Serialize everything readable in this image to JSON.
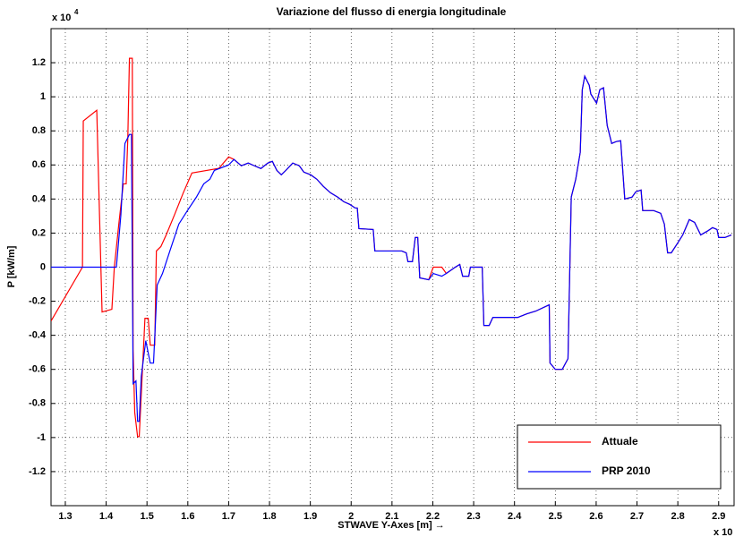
{
  "chart_data": {
    "type": "line",
    "title": "Variazione del flusso di energia longitudinale",
    "xlabel": "STWAVE Y-Axes [m] →",
    "ylabel": "P [kW/m]",
    "y_multiplier": "x 10",
    "y_multiplier_exponent": "4",
    "x_multiplier": "x 10",
    "xlim": [
      1.265,
      2.94
    ],
    "ylim": [
      -1.4,
      1.4
    ],
    "xticks": [
      1.3,
      1.4,
      1.5,
      1.6,
      1.7,
      1.8,
      1.9,
      2,
      2.1,
      2.2,
      2.3,
      2.4,
      2.5,
      2.6,
      2.7,
      2.8,
      2.9
    ],
    "yticks": [
      -1.2,
      -1,
      -0.8,
      -0.6,
      -0.4,
      -0.2,
      0,
      0.2,
      0.4,
      0.6,
      0.8,
      1,
      1.2
    ],
    "grid": true,
    "legend": "lower right",
    "series": [
      {
        "name": "Attuale",
        "color": "#ff0000",
        "x": [
          1.265,
          1.342,
          1.344,
          1.377,
          1.39,
          1.414,
          1.42,
          1.431,
          1.442,
          1.449,
          1.453,
          1.457,
          1.464,
          1.466,
          1.47,
          1.477,
          1.481,
          1.486,
          1.495,
          1.503,
          1.508,
          1.519,
          1.523,
          1.534,
          1.547,
          1.567,
          1.589,
          1.61,
          1.676,
          1.7,
          1.713,
          1.731,
          1.748,
          1.763,
          1.779,
          1.796,
          1.807,
          1.818,
          1.829,
          1.84,
          1.857,
          1.873,
          1.884,
          1.901,
          1.916,
          1.932,
          1.949,
          1.967,
          1.982,
          1.997,
          2.01,
          2.015,
          2.019,
          2.054,
          2.058,
          2.124,
          2.135,
          2.139,
          2.15,
          2.157,
          2.163,
          2.168,
          2.19,
          2.201,
          2.222,
          2.233,
          2.255,
          2.266,
          2.273,
          2.288,
          2.292,
          2.321,
          2.325,
          2.338,
          2.347,
          2.408,
          2.43,
          2.452,
          2.485,
          2.487,
          2.5,
          2.517,
          2.531,
          2.539,
          2.55,
          2.561,
          2.566,
          2.572,
          2.583,
          2.587,
          2.601,
          2.609,
          2.618,
          2.627,
          2.638,
          2.649,
          2.66,
          2.67,
          2.688,
          2.697,
          2.71,
          2.714,
          2.741,
          2.758,
          2.767,
          2.775,
          2.784,
          2.801,
          2.812,
          2.828,
          2.841,
          2.856,
          2.872,
          2.885,
          2.896,
          2.9,
          2.915,
          2.931
        ],
        "values": [
          -0.316,
          0,
          0.858,
          0.921,
          -0.263,
          -0.247,
          0,
          0.253,
          0.489,
          0.489,
          0.753,
          1.226,
          1.226,
          -0.484,
          -0.853,
          -0.995,
          -0.995,
          -0.747,
          -0.3,
          -0.3,
          -0.458,
          -0.458,
          0.095,
          0.121,
          0.189,
          0.305,
          0.437,
          0.553,
          0.58,
          0.647,
          0.632,
          0.595,
          0.611,
          0.595,
          0.579,
          0.611,
          0.621,
          0.568,
          0.542,
          0.568,
          0.611,
          0.595,
          0.558,
          0.542,
          0.516,
          0.474,
          0.437,
          0.411,
          0.384,
          0.368,
          0.347,
          0.347,
          0.226,
          0.221,
          0.095,
          0.095,
          0.084,
          0.032,
          0.032,
          0.174,
          0.174,
          -0.063,
          -0.074,
          0,
          0,
          -0.037,
          0,
          0.016,
          -0.053,
          -0.053,
          0,
          0,
          -0.342,
          -0.342,
          -0.295,
          -0.295,
          -0.274,
          -0.258,
          -0.221,
          -0.563,
          -0.6,
          -0.6,
          -0.537,
          0.411,
          0.516,
          0.674,
          1.042,
          1.121,
          1.068,
          1.016,
          0.963,
          1.042,
          1.053,
          0.832,
          0.726,
          0.737,
          0.742,
          0.4,
          0.411,
          0.442,
          0.453,
          0.332,
          0.332,
          0.316,
          0.253,
          0.084,
          0.084,
          0.147,
          0.189,
          0.279,
          0.263,
          0.189,
          0.211,
          0.232,
          0.221,
          0.174,
          0.174,
          0.189
        ]
      },
      {
        "name": "PRP 2010",
        "color": "#0000ff",
        "x": [
          1.265,
          1.425,
          1.436,
          1.446,
          1.457,
          1.462,
          1.466,
          1.473,
          1.477,
          1.481,
          1.486,
          1.497,
          1.508,
          1.516,
          1.525,
          1.538,
          1.556,
          1.578,
          1.599,
          1.621,
          1.639,
          1.654,
          1.665,
          1.7,
          1.713,
          1.731,
          1.748,
          1.763,
          1.779,
          1.796,
          1.807,
          1.818,
          1.829,
          1.84,
          1.857,
          1.873,
          1.884,
          1.901,
          1.916,
          1.932,
          1.949,
          1.967,
          1.982,
          1.997,
          2.01,
          2.015,
          2.019,
          2.054,
          2.058,
          2.124,
          2.135,
          2.139,
          2.15,
          2.157,
          2.163,
          2.168,
          2.19,
          2.201,
          2.222,
          2.233,
          2.255,
          2.266,
          2.273,
          2.288,
          2.292,
          2.321,
          2.325,
          2.338,
          2.347,
          2.408,
          2.43,
          2.452,
          2.485,
          2.487,
          2.5,
          2.517,
          2.531,
          2.539,
          2.55,
          2.561,
          2.566,
          2.572,
          2.583,
          2.587,
          2.601,
          2.609,
          2.618,
          2.627,
          2.638,
          2.649,
          2.66,
          2.67,
          2.688,
          2.697,
          2.71,
          2.714,
          2.741,
          2.758,
          2.767,
          2.775,
          2.784,
          2.801,
          2.812,
          2.828,
          2.841,
          2.856,
          2.872,
          2.885,
          2.896,
          2.9,
          2.915,
          2.931
        ],
        "values": [
          0,
          0,
          0.305,
          0.726,
          0.779,
          0.779,
          -0.684,
          -0.668,
          -0.905,
          -0.905,
          -0.642,
          -0.432,
          -0.563,
          -0.563,
          -0.105,
          -0.037,
          0.095,
          0.253,
          0.332,
          0.411,
          0.489,
          0.516,
          0.568,
          0.6,
          0.632,
          0.595,
          0.611,
          0.595,
          0.579,
          0.611,
          0.621,
          0.568,
          0.542,
          0.568,
          0.611,
          0.595,
          0.558,
          0.542,
          0.516,
          0.474,
          0.437,
          0.411,
          0.384,
          0.368,
          0.347,
          0.347,
          0.226,
          0.221,
          0.095,
          0.095,
          0.084,
          0.032,
          0.032,
          0.174,
          0.174,
          -0.063,
          -0.074,
          -0.037,
          -0.053,
          -0.037,
          0,
          0.016,
          -0.053,
          -0.053,
          0,
          0,
          -0.342,
          -0.342,
          -0.295,
          -0.295,
          -0.274,
          -0.258,
          -0.221,
          -0.563,
          -0.6,
          -0.6,
          -0.537,
          0.411,
          0.516,
          0.674,
          1.042,
          1.121,
          1.068,
          1.016,
          0.963,
          1.042,
          1.053,
          0.832,
          0.726,
          0.737,
          0.742,
          0.4,
          0.411,
          0.442,
          0.453,
          0.332,
          0.332,
          0.316,
          0.253,
          0.084,
          0.084,
          0.147,
          0.189,
          0.279,
          0.263,
          0.189,
          0.211,
          0.232,
          0.221,
          0.174,
          0.174,
          0.189
        ]
      }
    ]
  }
}
